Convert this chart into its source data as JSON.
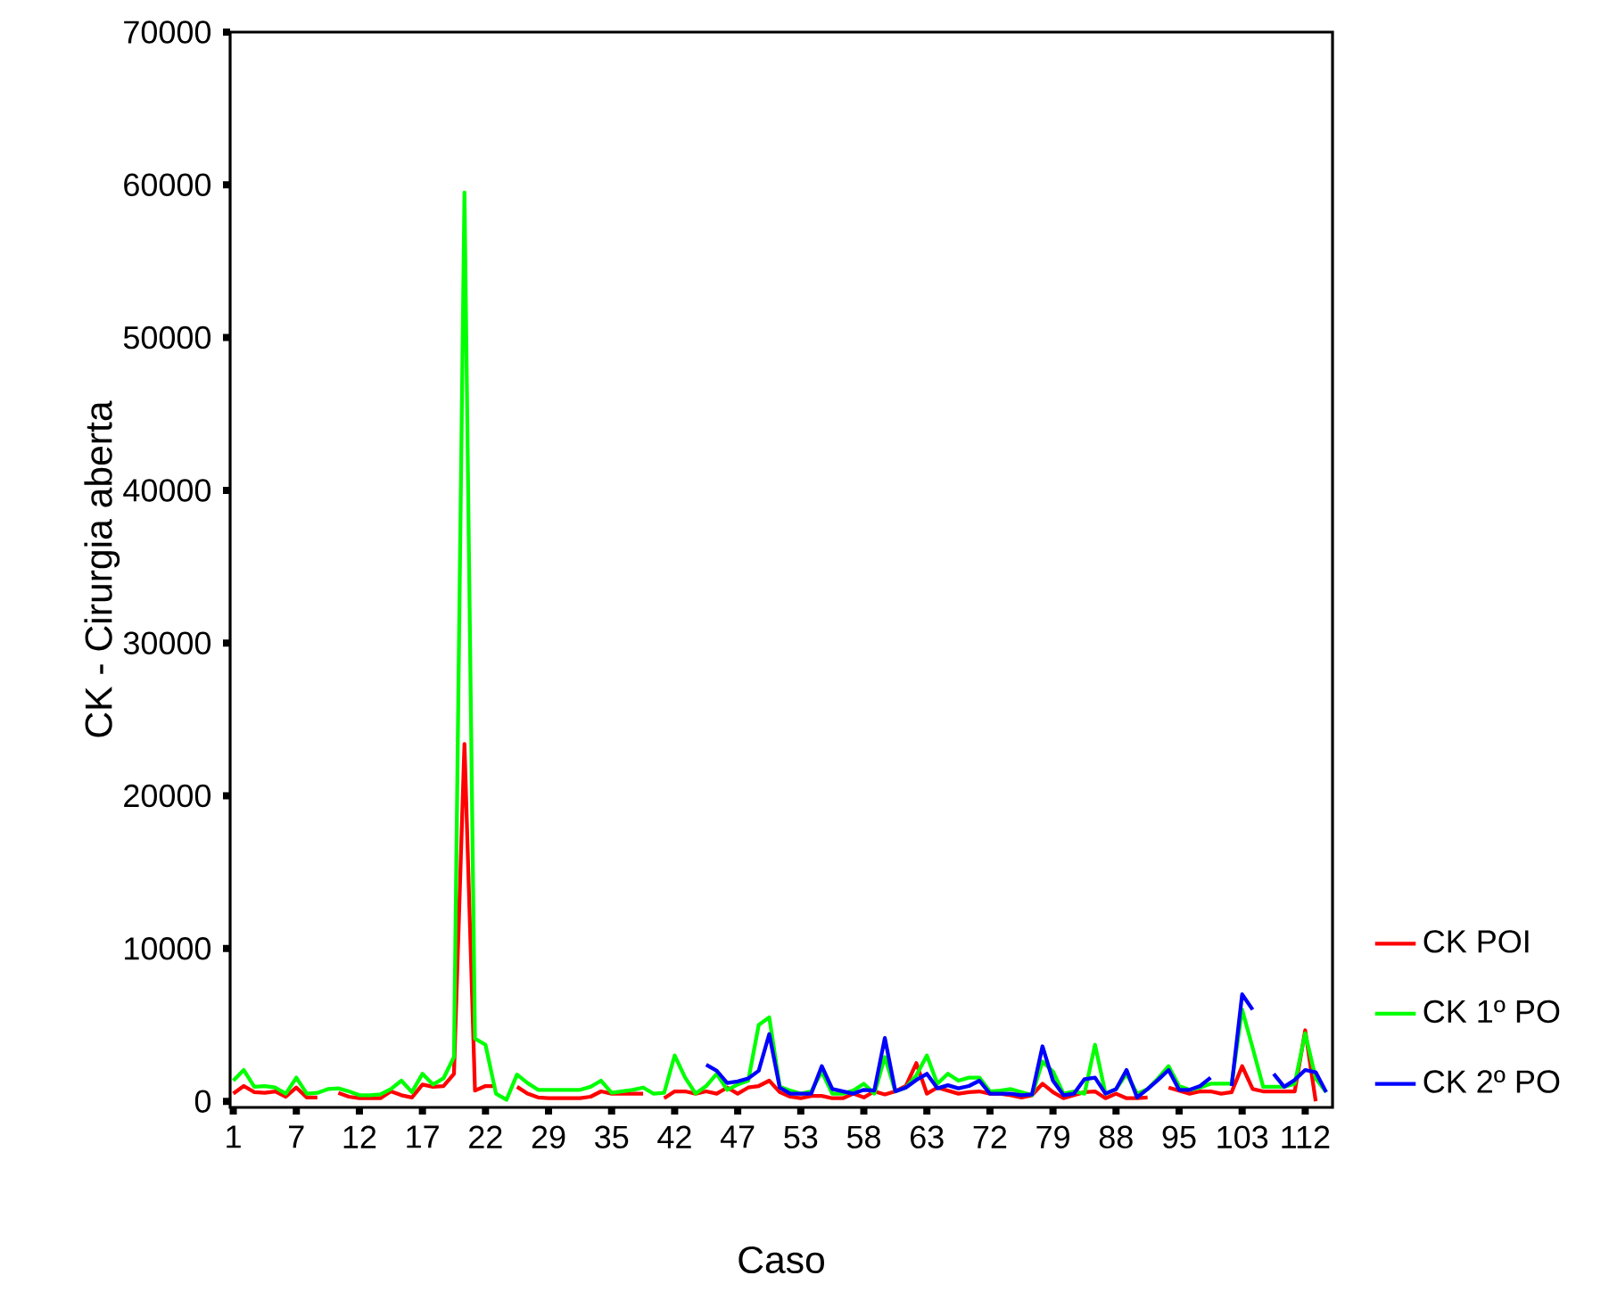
{
  "chart_data": {
    "type": "line",
    "xlabel": "Caso",
    "ylabel": "CK - Cirurgia aberta",
    "categories": [
      "1",
      null,
      null,
      null,
      null,
      null,
      "7",
      null,
      null,
      null,
      null,
      null,
      "12",
      null,
      null,
      null,
      null,
      null,
      "17",
      null,
      null,
      null,
      null,
      null,
      "22",
      null,
      null,
      null,
      null,
      null,
      "29",
      null,
      null,
      null,
      null,
      null,
      "35",
      null,
      null,
      null,
      null,
      null,
      "42",
      null,
      null,
      null,
      null,
      null,
      "47",
      null,
      null,
      null,
      null,
      null,
      "53",
      null,
      null,
      null,
      null,
      null,
      "58",
      null,
      null,
      null,
      null,
      null,
      "63",
      null,
      null,
      null,
      null,
      null,
      "72",
      null,
      null,
      null,
      null,
      null,
      "79",
      null,
      null,
      null,
      null,
      null,
      "88",
      null,
      null,
      null,
      null,
      null,
      "95",
      null,
      null,
      null,
      null,
      null,
      "103",
      null,
      null,
      null,
      null,
      null,
      "112",
      null,
      null
    ],
    "series": [
      {
        "name": "CK POI",
        "color": "#ff0000",
        "values": [
          500,
          1000,
          600,
          550,
          650,
          300,
          900,
          250,
          250,
          null,
          550,
          300,
          200,
          200,
          200,
          650,
          400,
          250,
          1100,
          950,
          1000,
          1800,
          23400,
          700,
          1000,
          1000,
          null,
          950,
          500,
          250,
          200,
          200,
          200,
          200,
          300,
          650,
          500,
          500,
          500,
          500,
          null,
          200,
          650,
          650,
          500,
          650,
          500,
          900,
          500,
          900,
          1000,
          1350,
          600,
          300,
          200,
          350,
          350,
          200,
          200,
          500,
          250,
          650,
          450,
          650,
          1000,
          2500,
          500,
          900,
          700,
          500,
          600,
          650,
          500,
          500,
          400,
          250,
          400,
          1150,
          600,
          200,
          400,
          600,
          650,
          200,
          500,
          200,
          200,
          250,
          null,
          900,
          700,
          500,
          650,
          650,
          500,
          600,
          2300,
          800,
          650,
          650,
          650,
          650,
          4650,
          0,
          null
        ]
      },
      {
        "name": "CK 1º PO",
        "color": "#00ff00",
        "values": [
          1350,
          2050,
          950,
          1000,
          900,
          500,
          1550,
          500,
          550,
          800,
          850,
          650,
          400,
          400,
          450,
          800,
          1350,
          600,
          1800,
          1100,
          1500,
          2900,
          59500,
          4100,
          3700,
          500,
          100,
          1750,
          1200,
          750,
          750,
          750,
          750,
          750,
          950,
          1350,
          550,
          650,
          750,
          900,
          500,
          550,
          3000,
          1550,
          500,
          1000,
          1800,
          750,
          1100,
          1350,
          5000,
          5500,
          950,
          700,
          500,
          650,
          1950,
          500,
          500,
          700,
          1150,
          500,
          2900,
          650,
          900,
          1700,
          3000,
          1150,
          1800,
          1350,
          1550,
          1550,
          650,
          700,
          800,
          600,
          400,
          2600,
          1950,
          500,
          650,
          500,
          3700,
          500,
          800,
          1800,
          500,
          800,
          1500,
          2300,
          1000,
          750,
          900,
          1150,
          1150,
          1150,
          6000,
          3500,
          950,
          950,
          950,
          1150,
          4450,
          1500,
          600
        ]
      },
      {
        "name": "CK 2º PO",
        "color": "#0000ff",
        "values": [
          null,
          null,
          null,
          null,
          null,
          null,
          null,
          null,
          null,
          null,
          null,
          null,
          null,
          null,
          null,
          null,
          null,
          null,
          null,
          null,
          null,
          null,
          null,
          null,
          null,
          null,
          null,
          null,
          null,
          null,
          null,
          null,
          null,
          null,
          null,
          null,
          null,
          null,
          null,
          null,
          null,
          null,
          null,
          null,
          null,
          2400,
          2000,
          1200,
          1300,
          1500,
          2000,
          4400,
          900,
          500,
          500,
          500,
          2300,
          800,
          650,
          500,
          750,
          700,
          4150,
          650,
          900,
          1400,
          1800,
          850,
          1050,
          850,
          1000,
          1350,
          500,
          500,
          500,
          400,
          450,
          3600,
          1350,
          400,
          500,
          1450,
          1550,
          500,
          800,
          2050,
          250,
          800,
          1400,
          2050,
          750,
          750,
          1000,
          1550,
          null,
          1000,
          7000,
          6000,
          null,
          1800,
          950,
          1400,
          2050,
          1900,
          600
        ]
      }
    ],
    "ylim": [
      -400,
      70000
    ],
    "yticks": [
      0,
      10000,
      20000,
      30000,
      40000,
      50000,
      60000,
      70000
    ],
    "grid": false,
    "legend": "right",
    "marker": "none"
  }
}
